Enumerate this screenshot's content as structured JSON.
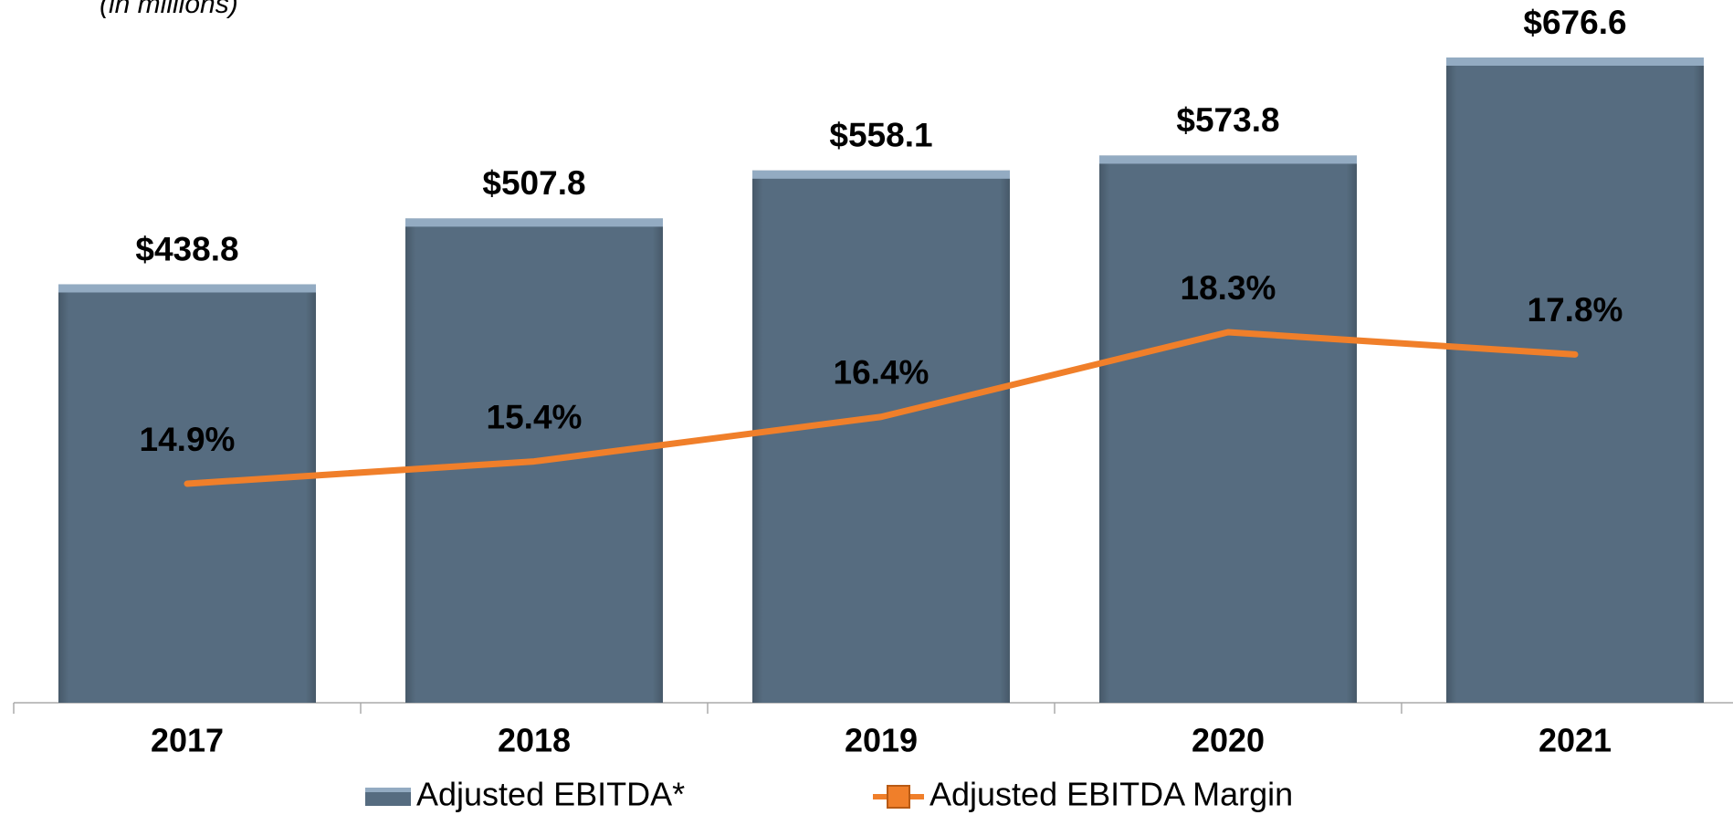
{
  "chart_data": {
    "type": "bar",
    "subtitle": "(in millions)",
    "categories": [
      "2017",
      "2018",
      "2019",
      "2020",
      "2021"
    ],
    "series": [
      {
        "name": "Adjusted EBITDA*",
        "type": "bar",
        "color": "#566c80",
        "values": [
          438.8,
          507.8,
          558.1,
          573.8,
          676.6
        ],
        "value_labels": [
          "$438.8",
          "$507.8",
          "$558.1",
          "$573.8",
          "$676.6"
        ]
      },
      {
        "name": "Adjusted EBITDA Margin",
        "type": "line",
        "axis": "y2",
        "color": "#f07f2a",
        "values": [
          14.9,
          15.4,
          16.4,
          18.3,
          17.8
        ],
        "value_labels": [
          "14.9%",
          "15.4%",
          "16.4%",
          "18.3%",
          "17.8%"
        ]
      }
    ],
    "legend": "bottom"
  }
}
